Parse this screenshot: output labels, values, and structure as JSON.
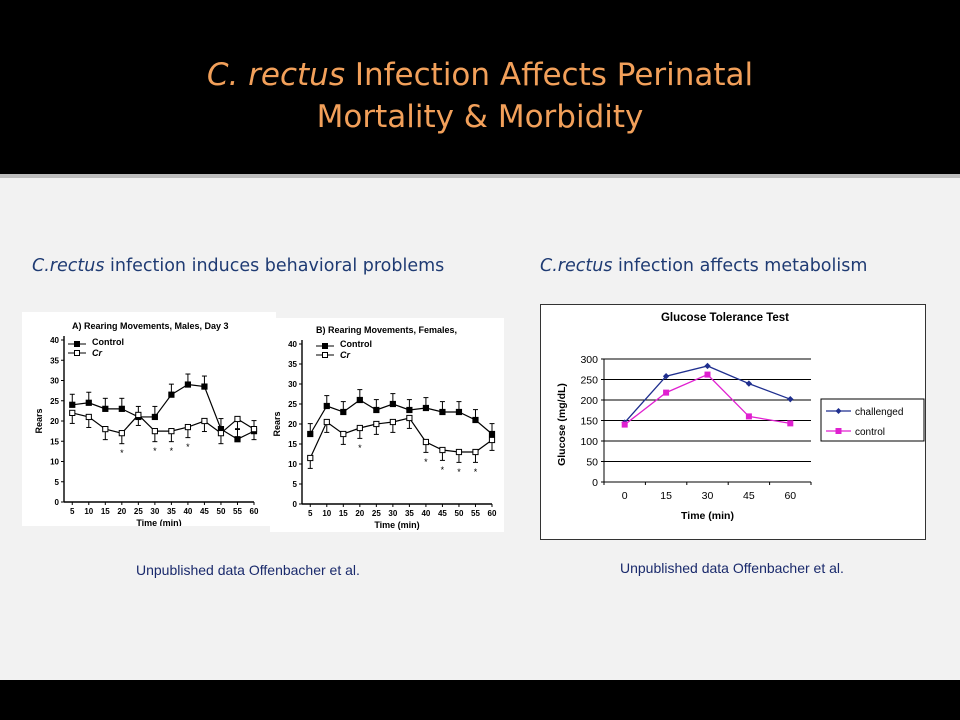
{
  "slide": {
    "title_italic": "C. rectus",
    "title_rest1": " Infection Affects Perinatal",
    "title_line2": "Mortality & Morbidity",
    "left_heading_italic": "C.rectus",
    "left_heading_rest": " infection induces behavioral problems",
    "right_heading_italic": "C.rectus",
    "right_heading_rest": " infection affects metabolism",
    "left_caption": "Unpublished data Offenbacher et al.",
    "right_caption": "Unpublished data Offenbacher et al."
  },
  "chart_data": [
    {
      "type": "line",
      "title": "A)  Rearing Movements, Males, Day 3",
      "xlabel": "Time (min)",
      "ylabel": "Rears",
      "x": [
        5,
        10,
        15,
        20,
        25,
        30,
        35,
        40,
        45,
        50,
        55,
        60
      ],
      "ylim": [
        0,
        40
      ],
      "yticks": [
        0,
        5,
        10,
        15,
        20,
        25,
        30,
        35,
        40
      ],
      "series": [
        {
          "name": "Control",
          "marker": "filled-square",
          "values": [
            24,
            24.5,
            23,
            23,
            21,
            21,
            26.5,
            29,
            28.5,
            18,
            15.5,
            17.5
          ]
        },
        {
          "name": "Cr",
          "marker": "open-square",
          "values": [
            22,
            21,
            18,
            17,
            21.5,
            17.5,
            17.5,
            18.5,
            20,
            17,
            20.5,
            18
          ]
        }
      ],
      "significance_markers": [
        {
          "x": 20,
          "label": "*"
        },
        {
          "x": 30,
          "label": "*"
        },
        {
          "x": 35,
          "label": "*"
        },
        {
          "x": 40,
          "label": "*"
        }
      ]
    },
    {
      "type": "line",
      "title": "B)  Rearing Movements, Females,",
      "xlabel": "Time (min)",
      "ylabel": "Rears",
      "x": [
        5,
        10,
        15,
        20,
        25,
        30,
        35,
        40,
        45,
        50,
        55,
        60
      ],
      "ylim": [
        0,
        40
      ],
      "yticks": [
        0,
        5,
        10,
        15,
        20,
        25,
        30,
        35,
        40
      ],
      "series": [
        {
          "name": "Control",
          "marker": "filled-square",
          "values": [
            17.5,
            24.5,
            23,
            26,
            23.5,
            25,
            23.5,
            24,
            23,
            23,
            21,
            17.5
          ]
        },
        {
          "name": "Cr",
          "marker": "open-square",
          "values": [
            11.5,
            20.5,
            17.5,
            19,
            20,
            20.5,
            21.5,
            15.5,
            13.5,
            13,
            13,
            16
          ]
        }
      ],
      "significance_markers": [
        {
          "x": 20,
          "label": "*"
        },
        {
          "x": 40,
          "label": "*"
        },
        {
          "x": 45,
          "label": "*"
        },
        {
          "x": 50,
          "label": "*"
        },
        {
          "x": 55,
          "label": "*"
        }
      ]
    },
    {
      "type": "line",
      "title": "Glucose Tolerance Test",
      "xlabel": "Time (min)",
      "ylabel": "Glucose (mg/dL)",
      "x": [
        0,
        15,
        30,
        45,
        60
      ],
      "ylim": [
        0,
        300
      ],
      "yticks": [
        0,
        50,
        100,
        150,
        200,
        250,
        300
      ],
      "grid": true,
      "legend": "right",
      "series": [
        {
          "name": "challenged",
          "color": "#1f2f8f",
          "marker": "diamond",
          "values": [
            145,
            258,
            283,
            240,
            202
          ]
        },
        {
          "name": "control",
          "color": "#e020d0",
          "marker": "square",
          "values": [
            140,
            218,
            262,
            160,
            143
          ]
        }
      ]
    }
  ]
}
